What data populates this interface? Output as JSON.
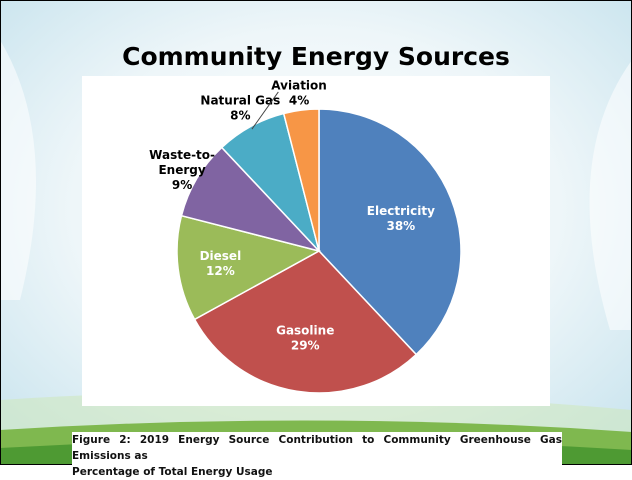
{
  "slide": {
    "title": "Community Energy Sources",
    "caption_line1": "Figure 2: 2019 Energy Source Contribution to Community Greenhouse Gas Emissions as",
    "caption_line2": "Percentage of Total Energy Usage"
  },
  "chart_data": {
    "type": "pie",
    "title": "Community Energy Sources",
    "slices": [
      {
        "label": "Electricity",
        "label_lines": [
          "Electricity"
        ],
        "value": 38,
        "value_text": "38%",
        "color": "#4f81bd",
        "label_color": "#ffffff"
      },
      {
        "label": "Gasoline",
        "label_lines": [
          "Gasoline"
        ],
        "value": 29,
        "value_text": "29%",
        "color": "#c0504d",
        "label_color": "#ffffff"
      },
      {
        "label": "Diesel",
        "label_lines": [
          "Diesel"
        ],
        "value": 12,
        "value_text": "12%",
        "color": "#9bbb59",
        "label_color": "#ffffff"
      },
      {
        "label": "Waste-to-Energy",
        "label_lines": [
          "Waste-to-",
          "Energy"
        ],
        "value": 9,
        "value_text": "9%",
        "color": "#8064a2",
        "label_color": "#000000"
      },
      {
        "label": "Natural Gas",
        "label_lines": [
          "Natural Gas"
        ],
        "value": 8,
        "value_text": "8%",
        "color": "#4bacc6",
        "label_color": "#000000"
      },
      {
        "label": "Aviation",
        "label_lines": [
          "Aviation"
        ],
        "value": 4,
        "value_text": "4%",
        "color": "#f79646",
        "label_color": "#000000"
      }
    ]
  }
}
